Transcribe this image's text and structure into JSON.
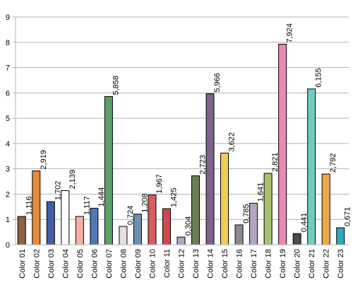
{
  "chart_data": {
    "type": "bar",
    "title": "",
    "xlabel": "",
    "ylabel": "",
    "ylim": [
      0,
      9
    ],
    "yticks": [
      "0",
      "1",
      "2",
      "3",
      "4",
      "5",
      "6",
      "7",
      "8",
      "9"
    ],
    "grid": true,
    "legend": "none",
    "categories": [
      "Color 01",
      "Color 02",
      "Color 03",
      "Color 04",
      "Color 05",
      "Color 06",
      "Color 07",
      "Color 08",
      "Color 09",
      "Color 10",
      "Color 11",
      "Color 12",
      "Color 13",
      "Color 14",
      "Color 15",
      "Color 16",
      "Color 17",
      "Color 18",
      "Color 19",
      "Color 20",
      "Color 21",
      "Color 22",
      "Color 23"
    ],
    "values": [
      1.116,
      2.919,
      1.702,
      2.139,
      1.117,
      1.444,
      5.858,
      0.724,
      1.208,
      1.967,
      1.425,
      0.304,
      2.723,
      5.966,
      3.622,
      0.785,
      1.641,
      2.821,
      7.924,
      0.441,
      6.155,
      2.792,
      0.671
    ],
    "value_labels": [
      "1,116",
      "2,919",
      "1,702",
      "2,139",
      "1,117",
      "1,444",
      "5,858",
      "0,724",
      "1,208",
      "1,967",
      "1,425",
      "0,304",
      "2,723",
      "5,966",
      "3,622",
      "0,785",
      "1,641",
      "2,821",
      "7,924",
      "0,441",
      "6,155",
      "2,792",
      "0,671"
    ],
    "colors": [
      "#8b6347",
      "#e8893a",
      "#3f5fa8",
      "#ffffff",
      "#f4b0a6",
      "#5277b8",
      "#5aa064",
      "#e0e0e0",
      "#6d8fb2",
      "#d75c5c",
      "#cf4a50",
      "#b5a3c8",
      "#6b7f55",
      "#80608c",
      "#f2cc55",
      "#8c8c8c",
      "#b7a4bf",
      "#a9c26f",
      "#ef86b3",
      "#4a4a4a",
      "#6fcbbd",
      "#f0a84a",
      "#2da7c2"
    ]
  }
}
